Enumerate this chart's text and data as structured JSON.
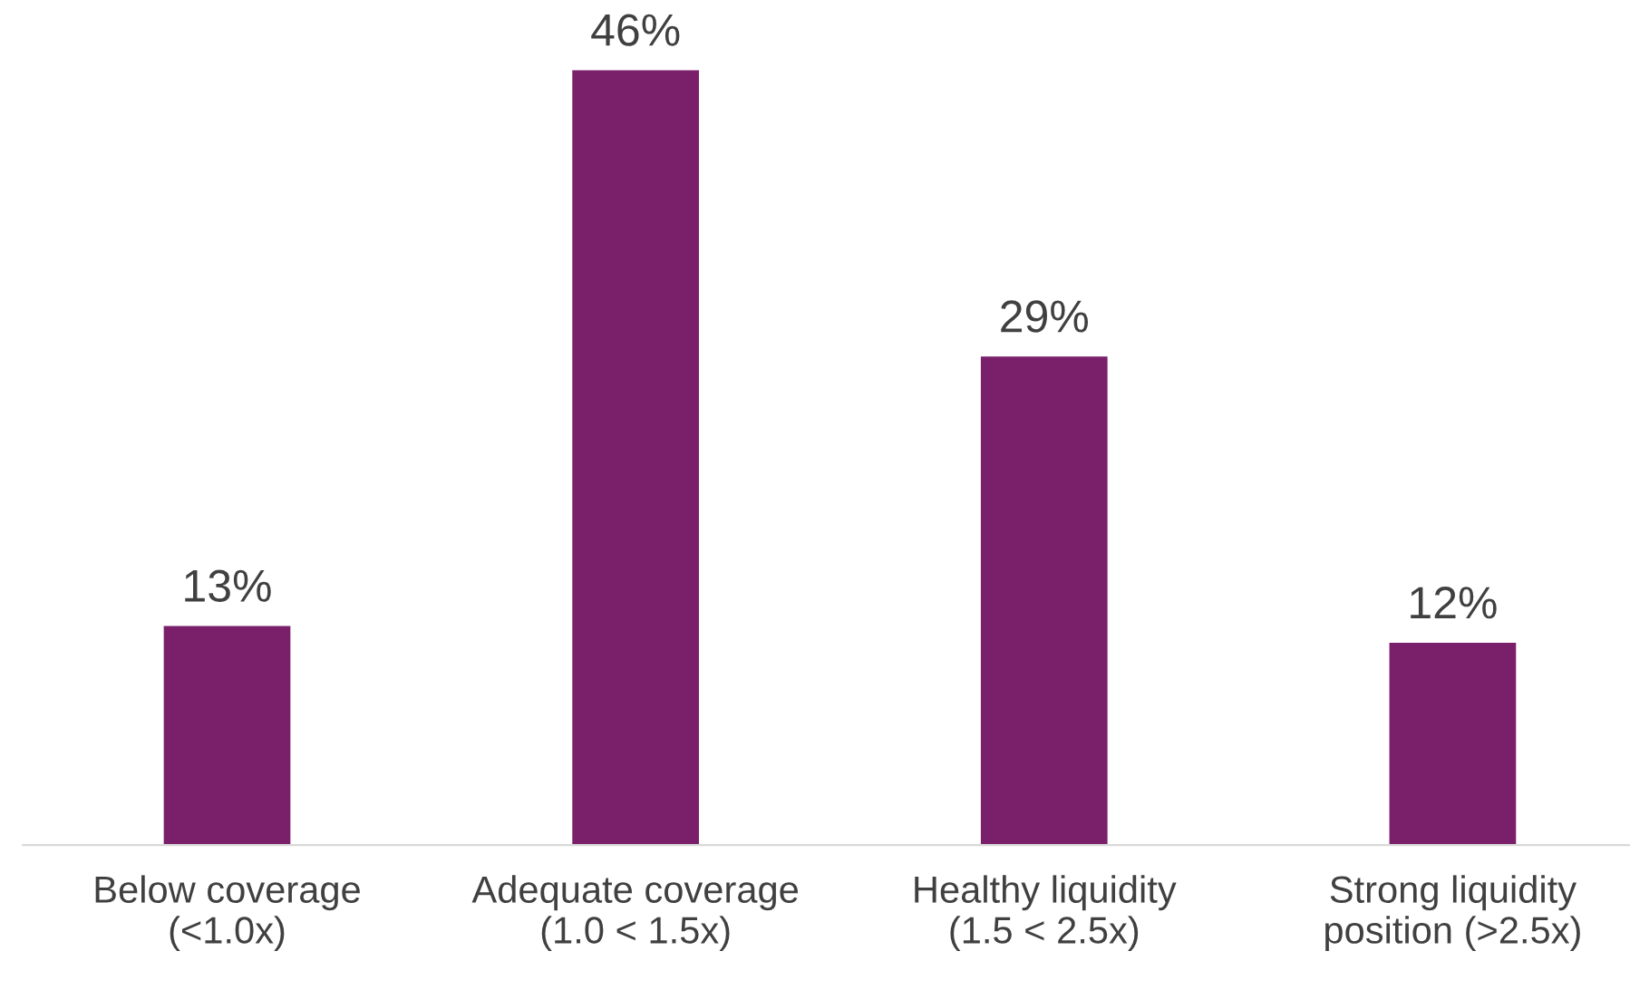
{
  "chart_data": {
    "type": "bar",
    "categories": [
      "Below coverage\n(<1.0x)",
      "Adequate coverage\n(1.0 < 1.5x)",
      "Healthy liquidity\n(1.5 < 2.5x)",
      "Strong liquidity\nposition (>2.5x)"
    ],
    "values": [
      13,
      46,
      29,
      12
    ],
    "value_labels": [
      "13%",
      "46%",
      "29%",
      "12%"
    ],
    "color": "#7a1f6a",
    "grid": false,
    "legend": false
  }
}
